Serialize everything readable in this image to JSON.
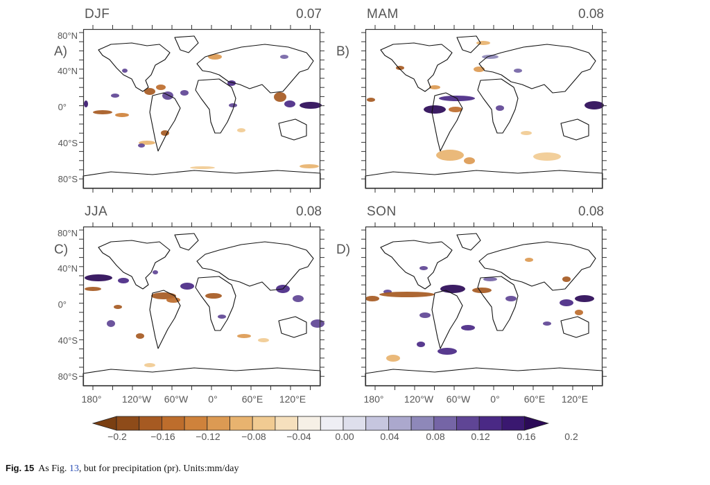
{
  "panels": [
    {
      "id": "A",
      "label": "A)",
      "season": "DJF",
      "value": "0.07"
    },
    {
      "id": "B",
      "label": "B)",
      "season": "MAM",
      "value": "0.08"
    },
    {
      "id": "C",
      "label": "C)",
      "season": "JJA",
      "value": "0.08"
    },
    {
      "id": "D",
      "label": "D)",
      "season": "SON",
      "value": "0.08"
    }
  ],
  "lat_ticks": [
    "80°N",
    "40°N",
    "0°",
    "40°S",
    "80°S"
  ],
  "lon_ticks": [
    "180°",
    "120°W",
    "60°W",
    "0°",
    "60°E",
    "120°E"
  ],
  "colorbar": {
    "labels": [
      "−0.2",
      "−0.16",
      "−0.12",
      "−0.08",
      "−0.04",
      "0.00",
      "0.04",
      "0.08",
      "0.12",
      "0.16",
      "0.2"
    ],
    "colors": [
      "#7a3f12",
      "#8e4b19",
      "#a65a22",
      "#bd6d2c",
      "#cf823b",
      "#dc9a53",
      "#e8b36f",
      "#f1cb92",
      "#f6e0bd",
      "#f6f0e6",
      "#eeeef4",
      "#dedfec",
      "#c6c6df",
      "#aba8cd",
      "#8e88b9",
      "#7565a6",
      "#5f4595",
      "#4a2985",
      "#3a1870",
      "#2b0a57"
    ]
  },
  "caption": {
    "fig": "Fig. 15",
    "pre": "As Fig. ",
    "ref": "13",
    "post": ", but for precipitation (pr). Units:mm/day"
  }
}
